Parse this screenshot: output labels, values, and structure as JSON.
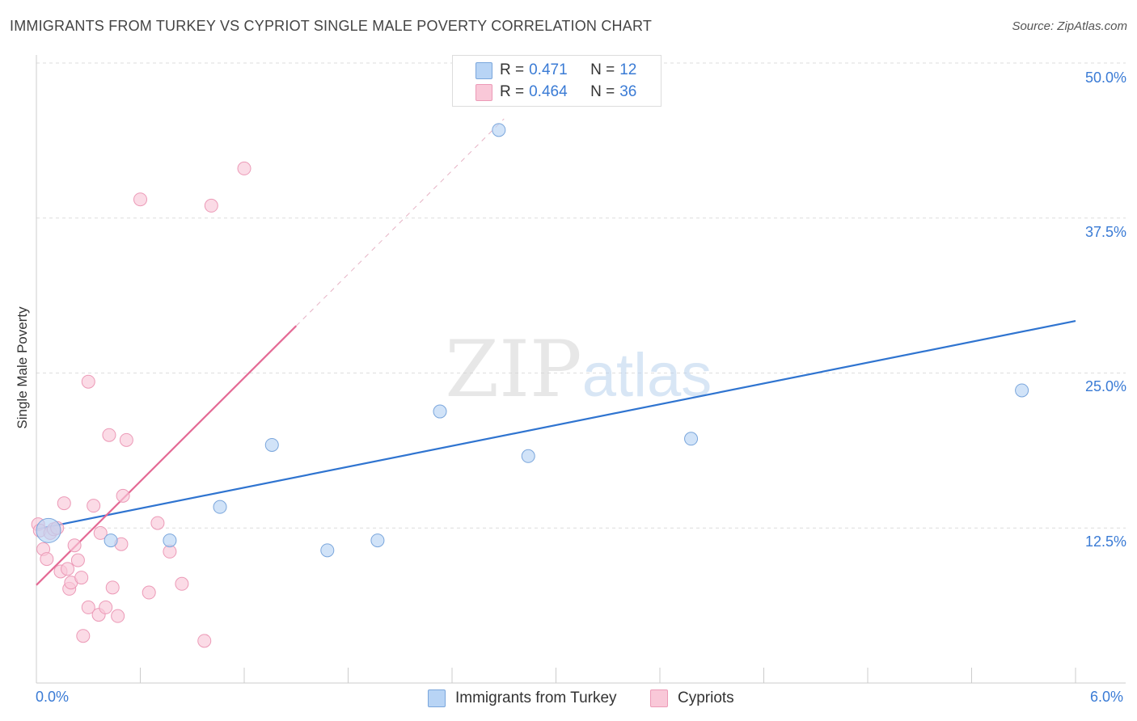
{
  "title": "IMMIGRANTS FROM TURKEY VS CYPRIOT SINGLE MALE POVERTY CORRELATION CHART",
  "source": "Source: ZipAtlas.com",
  "watermark": {
    "zip": "ZIP",
    "atlas": "atlas"
  },
  "legend_top": {
    "rows": [
      {
        "r_label": "R = ",
        "r_value": "0.471",
        "n_label": "N = ",
        "n_value": "12"
      },
      {
        "r_label": "R = ",
        "r_value": "0.464",
        "n_label": "N = ",
        "n_value": "36"
      }
    ]
  },
  "legend_bottom": {
    "turkey": "Immigrants from Turkey",
    "cypriots": "Cypriots"
  },
  "x_axis_labels": {
    "min": "0.0%",
    "max": "6.0%"
  },
  "y_axis_labels": {
    "t1": "12.5%",
    "t2": "25.0%",
    "t3": "37.5%",
    "t4": "50.0%"
  },
  "colors": {
    "turkey_fill": "#b8d4f5",
    "turkey_stroke": "#7aa6dc",
    "turkey_line": "#2f74d0",
    "cyp_fill": "#f9c8d8",
    "cyp_stroke": "#ec9ab7",
    "cyp_line": "#e46a95",
    "grid": "#dddddd",
    "axis_label": "#3a7bd5"
  },
  "chart_data": {
    "type": "scatter",
    "title": "IMMIGRANTS FROM TURKEY VS CYPRIOT SINGLE MALE POVERTY CORRELATION CHART",
    "xlabel": "",
    "ylabel": "Single Male Poverty",
    "xlim": [
      0,
      6
    ],
    "ylim": [
      0,
      50
    ],
    "x_unit": "%",
    "y_unit": "%",
    "y_ticks": [
      12.5,
      25.0,
      37.5,
      50.0
    ],
    "grid": "horizontal dashed",
    "legend_placement": "top-center and bottom",
    "series": [
      {
        "name": "Immigrants from Turkey",
        "r": 0.471,
        "n": 12,
        "points": [
          {
            "x": 0.07,
            "y": 12.3,
            "size": "large"
          },
          {
            "x": 0.43,
            "y": 11.5
          },
          {
            "x": 0.77,
            "y": 11.5
          },
          {
            "x": 1.06,
            "y": 14.2
          },
          {
            "x": 1.36,
            "y": 19.2
          },
          {
            "x": 1.68,
            "y": 10.7
          },
          {
            "x": 1.97,
            "y": 11.5
          },
          {
            "x": 2.33,
            "y": 21.9
          },
          {
            "x": 2.67,
            "y": 44.6
          },
          {
            "x": 2.84,
            "y": 18.3
          },
          {
            "x": 3.78,
            "y": 19.7
          },
          {
            "x": 5.69,
            "y": 23.6
          }
        ],
        "trend": {
          "x": [
            0,
            6
          ],
          "y": [
            12.4,
            29.2
          ]
        }
      },
      {
        "name": "Cypriots",
        "r": 0.464,
        "n": 36,
        "points": [
          {
            "x": 0.01,
            "y": 12.8
          },
          {
            "x": 0.02,
            "y": 12.3
          },
          {
            "x": 0.04,
            "y": 10.8
          },
          {
            "x": 0.06,
            "y": 10.0
          },
          {
            "x": 0.08,
            "y": 12.1
          },
          {
            "x": 0.1,
            "y": 12.4
          },
          {
            "x": 0.12,
            "y": 12.5
          },
          {
            "x": 0.14,
            "y": 9.0
          },
          {
            "x": 0.16,
            "y": 14.5
          },
          {
            "x": 0.18,
            "y": 9.2
          },
          {
            "x": 0.19,
            "y": 7.6
          },
          {
            "x": 0.2,
            "y": 8.1
          },
          {
            "x": 0.22,
            "y": 11.1
          },
          {
            "x": 0.24,
            "y": 9.9
          },
          {
            "x": 0.26,
            "y": 8.5
          },
          {
            "x": 0.27,
            "y": 3.8
          },
          {
            "x": 0.3,
            "y": 6.1
          },
          {
            "x": 0.3,
            "y": 24.3
          },
          {
            "x": 0.33,
            "y": 14.3
          },
          {
            "x": 0.36,
            "y": 5.5
          },
          {
            "x": 0.37,
            "y": 12.1
          },
          {
            "x": 0.4,
            "y": 6.1
          },
          {
            "x": 0.42,
            "y": 20.0
          },
          {
            "x": 0.44,
            "y": 7.7
          },
          {
            "x": 0.47,
            "y": 5.4
          },
          {
            "x": 0.49,
            "y": 11.2
          },
          {
            "x": 0.5,
            "y": 15.1
          },
          {
            "x": 0.52,
            "y": 19.6
          },
          {
            "x": 0.6,
            "y": 39.0
          },
          {
            "x": 0.65,
            "y": 7.3
          },
          {
            "x": 0.77,
            "y": 10.6
          },
          {
            "x": 0.84,
            "y": 8.0
          },
          {
            "x": 0.97,
            "y": 3.4
          },
          {
            "x": 1.01,
            "y": 38.5
          },
          {
            "x": 1.2,
            "y": 41.5
          },
          {
            "x": 0.7,
            "y": 12.9
          }
        ],
        "trend": {
          "x": [
            0,
            1.5
          ],
          "y": [
            7.9,
            28.8
          ]
        },
        "trend_extension": {
          "x": [
            1.5,
            2.7
          ],
          "y": [
            28.8,
            45.5
          ],
          "style": "dashed"
        }
      }
    ]
  }
}
